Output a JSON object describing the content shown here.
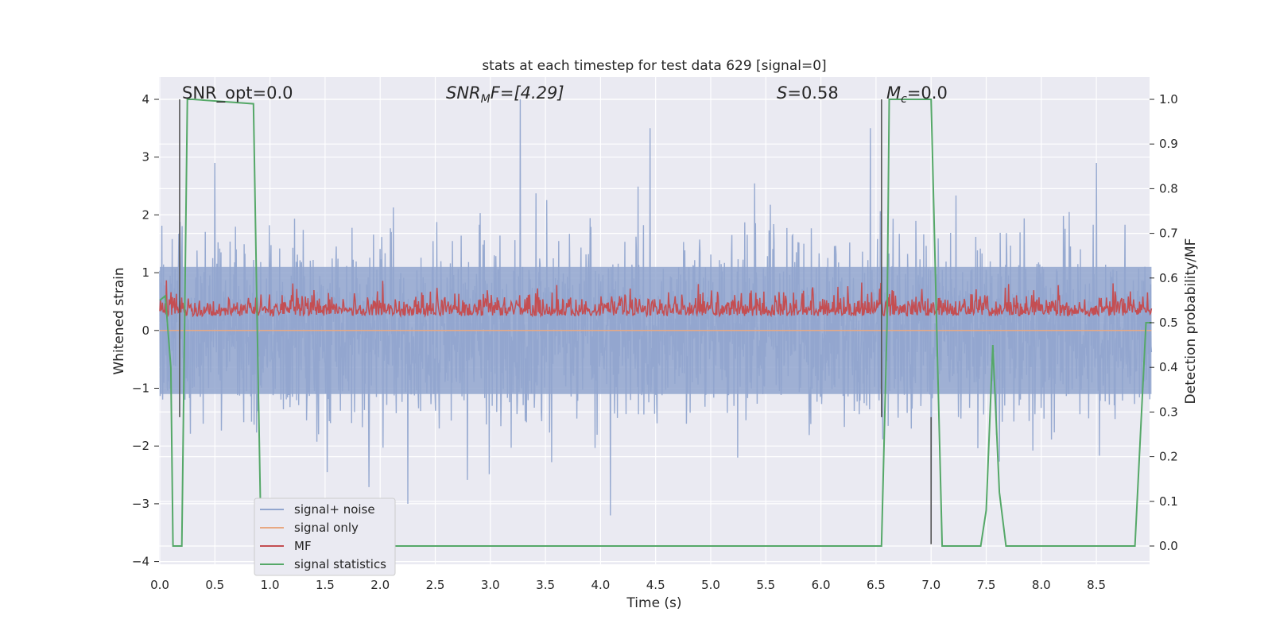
{
  "chart_data": {
    "type": "line",
    "title": "stats at each timestep for test data 629 [signal=0]",
    "xlabel": "Time (s)",
    "ylabel": "Whitened strain",
    "y2label": "Detection probability/MF",
    "xlim": [
      0.0,
      9.0
    ],
    "ylim": [
      -4.25,
      4.35
    ],
    "y2lim": [
      -0.045,
      1.045
    ],
    "x_ticks": [
      0.0,
      0.5,
      1.0,
      1.5,
      2.0,
      2.5,
      3.0,
      3.5,
      4.0,
      4.5,
      5.0,
      5.5,
      6.0,
      6.5,
      7.0,
      7.5,
      8.0,
      8.5
    ],
    "x_tick_labels": [
      "0.0",
      "0.5",
      "1.0",
      "1.5",
      "2.0",
      "2.5",
      "3.0",
      "3.5",
      "4.0",
      "4.5",
      "5.0",
      "5.5",
      "6.0",
      "6.5",
      "7.0",
      "7.5",
      "8.0",
      "8.5"
    ],
    "y_ticks": [
      -4,
      -3,
      -2,
      -1,
      0,
      1,
      2,
      3,
      4
    ],
    "y_tick_labels": [
      "−4",
      "−3",
      "−2",
      "−1",
      "0",
      "1",
      "2",
      "3",
      "4"
    ],
    "y2_ticks": [
      0.0,
      0.1,
      0.2,
      0.3,
      0.4,
      0.5,
      0.6,
      0.7,
      0.8,
      0.9,
      1.0
    ],
    "y2_tick_labels": [
      "0.0",
      "0.1",
      "0.2",
      "0.3",
      "0.4",
      "0.5",
      "0.6",
      "0.7",
      "0.8",
      "0.9",
      "1.0"
    ],
    "grid": true,
    "legend_position": "lower-left",
    "annotations": {
      "snr_opt": "SNR_opt=0.0",
      "snr_mf_main": "SNR",
      "snr_mf_sub": "M",
      "snr_mf_rest": "F=[4.29]",
      "s_main": "S",
      "s_rest": "=0.58",
      "mc_main": "M",
      "mc_sub": "c",
      "mc_rest": "=0.0"
    },
    "series": [
      {
        "name": "signal+ noise",
        "color": "#92a6cf",
        "axis": "left",
        "description_values": {
          "envelope_typical": [
            -1.6,
            1.6
          ],
          "peaks": [
            [
              0.5,
              2.9
            ],
            [
              3.27,
              4.0
            ],
            [
              4.45,
              3.5
            ],
            [
              6.45,
              3.5
            ],
            [
              8.5,
              2.9
            ],
            [
              2.25,
              -3.0
            ],
            [
              7.0,
              -3.5
            ]
          ]
        }
      },
      {
        "name": "signal only",
        "color": "#e8a882",
        "axis": "left",
        "constant_value": 0.0
      },
      {
        "name": "MF",
        "color": "#c44e52",
        "axis": "right",
        "description_values": {
          "baseline": 0.5,
          "range": [
            0.5,
            0.6
          ]
        }
      },
      {
        "name": "signal statistics",
        "color": "#55a868",
        "axis": "right",
        "x": [
          0.0,
          0.05,
          0.1,
          0.12,
          0.2,
          0.25,
          0.3,
          0.85,
          0.88,
          0.92,
          1.0,
          1.5,
          2.0,
          3.0,
          4.0,
          5.0,
          6.0,
          6.5,
          6.55,
          6.6,
          6.62,
          6.95,
          7.0,
          7.05,
          7.1,
          7.2,
          7.3,
          7.4,
          7.45,
          7.5,
          7.56,
          7.62,
          7.68,
          7.75,
          8.0,
          8.5,
          8.85,
          8.95,
          9.0
        ],
        "values": [
          0.55,
          0.56,
          0.4,
          0.0,
          0.0,
          1.0,
          1.0,
          0.99,
          0.55,
          0.0,
          0.0,
          0.0,
          0.0,
          0.0,
          0.0,
          0.0,
          0.0,
          0.0,
          0.0,
          0.5,
          1.0,
          1.0,
          1.0,
          0.5,
          0.0,
          0.0,
          0.0,
          0.0,
          0.0,
          0.08,
          0.45,
          0.12,
          0.0,
          0.0,
          0.0,
          0.0,
          0.0,
          0.5,
          0.5
        ]
      }
    ],
    "vertical_lines": [
      {
        "x": 0.18,
        "y_from": -1.5,
        "y_to": 4.0,
        "color": "#555555"
      },
      {
        "x": 6.55,
        "y_from": -1.5,
        "y_to": 4.0,
        "color": "#555555"
      },
      {
        "x": 7.0,
        "y_from": -3.7,
        "y_to": -1.5,
        "color": "#555555"
      }
    ]
  }
}
